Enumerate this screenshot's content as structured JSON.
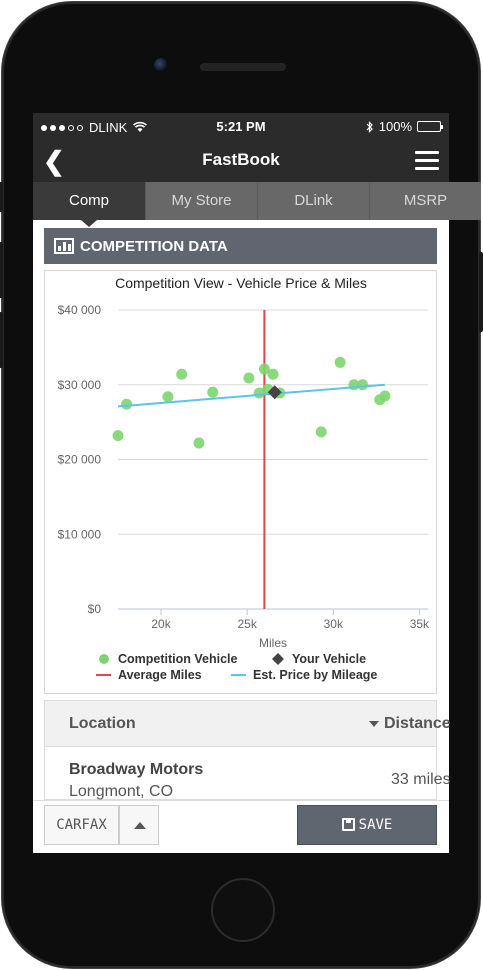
{
  "status_bar": {
    "carrier": "DLINK",
    "time": "5:21 PM",
    "battery": "100%"
  },
  "nav": {
    "title": "FastBook"
  },
  "tabs": [
    {
      "label": "Comp",
      "active": true
    },
    {
      "label": "My Store",
      "active": false
    },
    {
      "label": "DLink",
      "active": false
    },
    {
      "label": "MSRP",
      "active": false
    }
  ],
  "section": {
    "title": "COMPETITION DATA"
  },
  "chart_data": {
    "type": "scatter",
    "title": "Competition View - Vehicle Price & Miles",
    "xlabel": "Miles",
    "ylabel": "",
    "xlim": [
      17500,
      35500
    ],
    "ylim": [
      0,
      40000
    ],
    "xticks": [
      20000,
      25000,
      30000,
      35000
    ],
    "xtick_labels": [
      "20k",
      "25k",
      "30k",
      "35k"
    ],
    "yticks": [
      0,
      10000,
      20000,
      30000,
      40000
    ],
    "ytick_labels": [
      "$0",
      "$10 000",
      "$20 000",
      "$30 000",
      "$40 000"
    ],
    "grid": true,
    "legend_position": "bottom",
    "series": [
      {
        "name": "Competition Vehicle",
        "marker": "circle",
        "color": "#7ed56f",
        "points": [
          [
            17500,
            23200
          ],
          [
            18000,
            27400
          ],
          [
            20400,
            28400
          ],
          [
            21200,
            31400
          ],
          [
            22200,
            22200
          ],
          [
            23000,
            29000
          ],
          [
            25100,
            30900
          ],
          [
            25700,
            28900
          ],
          [
            26000,
            32100
          ],
          [
            26200,
            29400
          ],
          [
            26500,
            31400
          ],
          [
            26900,
            28900
          ],
          [
            29300,
            23700
          ],
          [
            30400,
            33000
          ],
          [
            31200,
            30000
          ],
          [
            31700,
            30000
          ],
          [
            32700,
            28000
          ],
          [
            33000,
            28500
          ]
        ]
      },
      {
        "name": "Your Vehicle",
        "marker": "diamond",
        "color": "#444444",
        "points": [
          [
            26600,
            29000
          ]
        ]
      },
      {
        "name": "Average Miles",
        "type": "vline",
        "color": "#e8424a",
        "x": 26000
      },
      {
        "name": "Est. Price by Mileage",
        "type": "line",
        "color": "#5bc4e8",
        "points": [
          [
            17500,
            27100
          ],
          [
            33000,
            30000
          ]
        ]
      }
    ]
  },
  "location_table": {
    "headers": {
      "location": "Location",
      "distance": "Distance"
    },
    "rows": [
      {
        "name": "Broadway Motors",
        "city": "Longmont, CO",
        "distance": "33 miles"
      }
    ]
  },
  "footer": {
    "carfax": "CARFAX",
    "save": "SAVE"
  }
}
